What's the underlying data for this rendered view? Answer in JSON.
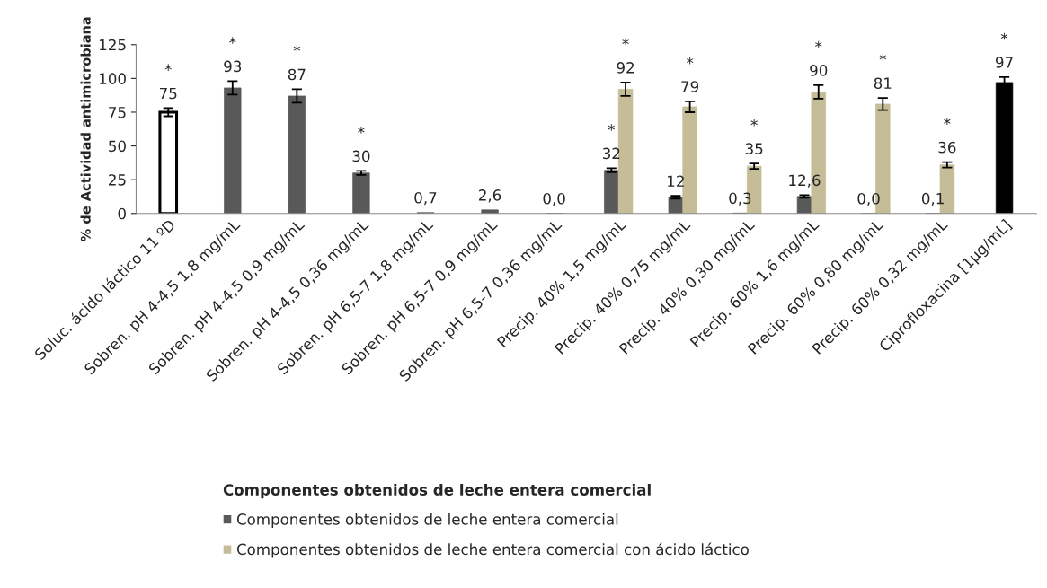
{
  "chart_data": {
    "type": "bar",
    "ylabel": "% de Actividad antimicrobiana",
    "legend_title": "Componentes obtenidos de leche entera comercial",
    "categories": [
      "Soluc. ácido láctico 11 ºD",
      "Sobren. pH 4-4,5 1,8 mg/mL",
      "Sobren. pH 4-4,5 0,9 mg/mL",
      "Sobren. pH 4-4,5 0,36 mg/mL",
      "Sobren. pH 6,5-7 1,8 mg/mL",
      "Sobren. pH 6,5-7 0,9 mg/mL",
      "Sobren. pH 6,5-7 0,36 mg/mL",
      "Precip. 40% 1,5 mg/mL",
      "Precip. 40% 0,75 mg/mL",
      "Precip. 40% 0,30 mg/mL",
      "Precip. 60% 1,6 mg/mL",
      "Precip. 60% 0,80 mg/mL",
      "Precip. 60% 0,32 mg/mL",
      "Ciprofloxacina [1µg/mL]"
    ],
    "series": [
      {
        "color": "#ffffff",
        "values": [
          75,
          null,
          null,
          null,
          null,
          null,
          null,
          null,
          null,
          null,
          null,
          null,
          null,
          null
        ],
        "errors": [
          3,
          null,
          null,
          null,
          null,
          null,
          null,
          null,
          null,
          null,
          null,
          null,
          null,
          null
        ],
        "value_labels": [
          "75",
          null,
          null,
          null,
          null,
          null,
          null,
          null,
          null,
          null,
          null,
          null,
          null,
          null
        ]
      },
      {
        "name": "Componentes obtenidos de leche entera comercial",
        "color": "#595959",
        "values": [
          null,
          93,
          87,
          30,
          0.7,
          2.6,
          0.0,
          32,
          12,
          0.3,
          12.6,
          0.0,
          0.1,
          null
        ],
        "errors": [
          null,
          5,
          5,
          1.5,
          null,
          null,
          null,
          1.5,
          1,
          null,
          1,
          null,
          null,
          null
        ],
        "value_labels": [
          null,
          "93",
          "87",
          "30",
          "0,7",
          "2,6",
          "0,0",
          "32",
          "12",
          "0,3",
          "12,6",
          "0,0",
          "0,1",
          null
        ]
      },
      {
        "name": "Componentes obtenidos de leche entera comercial con ácido láctico",
        "color": "#c4bd97",
        "values": [
          null,
          null,
          null,
          null,
          null,
          null,
          null,
          92,
          79,
          35,
          90,
          81,
          36,
          null
        ],
        "errors": [
          null,
          null,
          null,
          null,
          null,
          null,
          null,
          5,
          4,
          2,
          5,
          4.5,
          2,
          null
        ],
        "value_labels": [
          null,
          null,
          null,
          null,
          null,
          null,
          null,
          "92",
          "79",
          "35",
          "90",
          "81",
          "36",
          null
        ]
      },
      {
        "color": "#000000",
        "values": [
          null,
          null,
          null,
          null,
          null,
          null,
          null,
          null,
          null,
          null,
          null,
          null,
          null,
          97
        ],
        "errors": [
          null,
          null,
          null,
          null,
          null,
          null,
          null,
          null,
          null,
          null,
          null,
          null,
          null,
          4
        ],
        "value_labels": [
          null,
          null,
          null,
          null,
          null,
          null,
          null,
          null,
          null,
          null,
          null,
          null,
          null,
          "97"
        ]
      }
    ],
    "annotations": [
      {
        "text": "*",
        "x": "Soluc. ácido láctico 11 ºD",
        "y": 75
      },
      {
        "text": "*",
        "x": "Sobren. pH 4-4,5 1,8 mg/mL",
        "y": 93
      },
      {
        "text": "*",
        "x": "Sobren. pH 4-4,5 0,9 mg/mL",
        "y": 87
      },
      {
        "text": "*",
        "x": "Sobren. pH 4-4,5 0,36 mg/mL",
        "y": 30
      },
      {
        "text": "*",
        "x": "Precip. 40% 1,5 mg/mL",
        "y": 32
      },
      {
        "text": "*",
        "x": "Precip. 40% 1,5 mg/mL",
        "y": 92
      },
      {
        "text": "*",
        "x": "Precip. 40% 0,75 mg/mL",
        "y": 79
      },
      {
        "text": "*",
        "x": "Precip. 40% 0,30 mg/mL",
        "y": 35
      },
      {
        "text": "*",
        "x": "Precip. 60% 1,6 mg/mL",
        "y": 90
      },
      {
        "text": "*",
        "x": "Precip. 60% 0,80 mg/mL",
        "y": 81
      },
      {
        "text": "*",
        "x": "Precip. 60% 0,32 mg/mL",
        "y": 36
      },
      {
        "text": "*",
        "x": "Ciprofloxacina [1µg/mL]",
        "y": 97
      }
    ],
    "ylim": [
      0,
      125
    ],
    "yticks": [
      0,
      25,
      50,
      75,
      100,
      125
    ],
    "grid": false,
    "legend": "bottom"
  }
}
